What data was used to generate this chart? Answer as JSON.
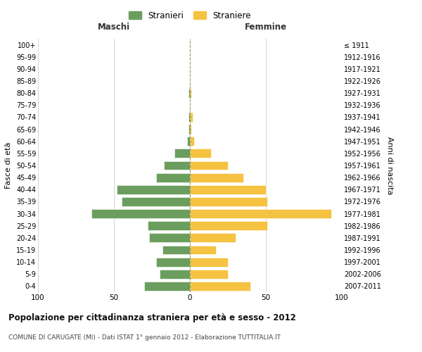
{
  "age_groups": [
    "0-4",
    "5-9",
    "10-14",
    "15-19",
    "20-24",
    "25-29",
    "30-34",
    "35-39",
    "40-44",
    "45-49",
    "50-54",
    "55-59",
    "60-64",
    "65-69",
    "70-74",
    "75-79",
    "80-84",
    "85-89",
    "90-94",
    "95-99",
    "100+"
  ],
  "birth_years": [
    "2007-2011",
    "2002-2006",
    "1997-2001",
    "1992-1996",
    "1987-1991",
    "1982-1986",
    "1977-1981",
    "1972-1976",
    "1967-1971",
    "1962-1966",
    "1957-1961",
    "1952-1956",
    "1947-1951",
    "1942-1946",
    "1937-1941",
    "1932-1936",
    "1927-1931",
    "1922-1926",
    "1917-1921",
    "1912-1916",
    "≤ 1911"
  ],
  "maschi": [
    30,
    20,
    22,
    18,
    27,
    28,
    65,
    45,
    48,
    22,
    17,
    10,
    2,
    1,
    1,
    0,
    1,
    0,
    0,
    0,
    0
  ],
  "femmine": [
    40,
    25,
    25,
    17,
    30,
    51,
    93,
    51,
    50,
    35,
    25,
    14,
    3,
    1,
    2,
    0,
    1,
    0,
    0,
    0,
    0
  ],
  "color_maschi": "#6b9e5e",
  "color_femmine": "#f5c242",
  "background_color": "#ffffff",
  "grid_color": "#cccccc",
  "title": "Popolazione per cittadinanza straniera per età e sesso - 2012",
  "subtitle": "COMUNE DI CARUGATE (MI) - Dati ISTAT 1° gennaio 2012 - Elaborazione TUTTITALIA.IT",
  "xlabel_left": "Maschi",
  "xlabel_right": "Femmine",
  "ylabel_left": "Fasce di età",
  "ylabel_right": "Anni di nascita",
  "legend_stranieri": "Stranieri",
  "legend_straniere": "Straniere",
  "xlim": 100
}
